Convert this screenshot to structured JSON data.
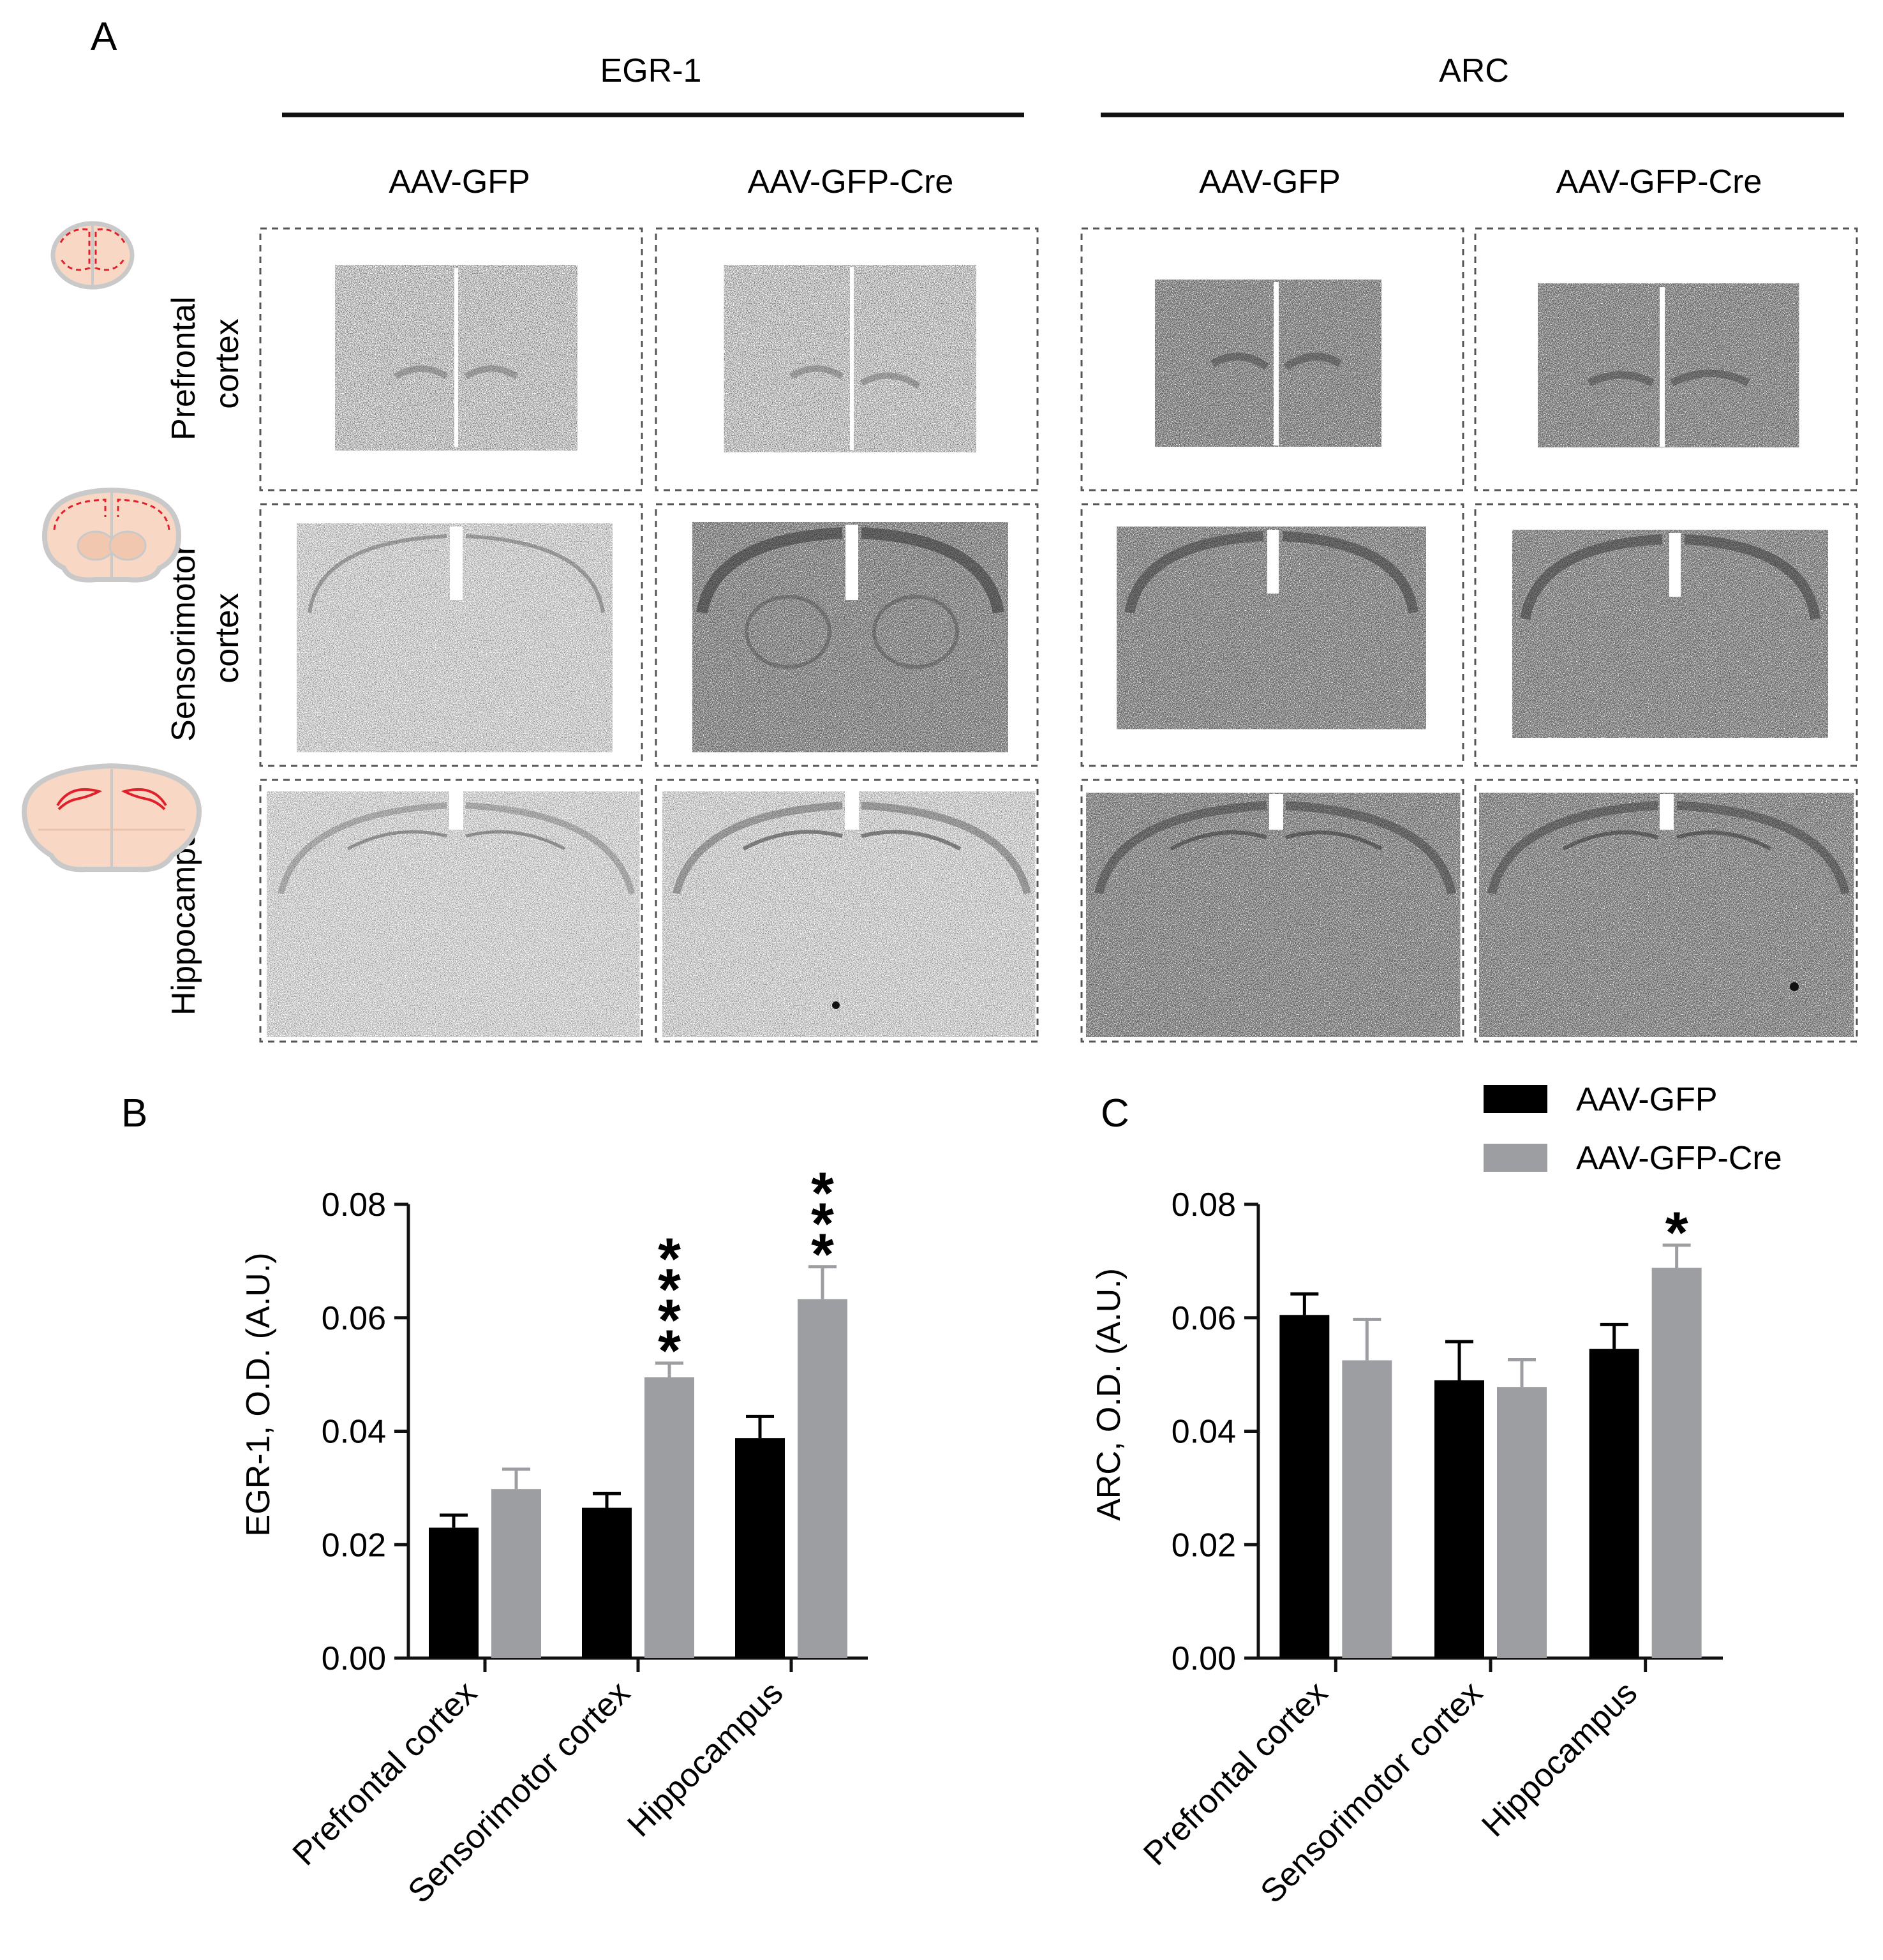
{
  "panel_a": {
    "label": "A",
    "group_headers": [
      "EGR-1",
      "ARC"
    ],
    "column_headers": [
      "AAV-GFP",
      "AAV-GFP-Cre",
      "AAV-GFP",
      "AAV-GFP-Cre"
    ],
    "row_labels": [
      [
        "Prefrontal",
        "cortex"
      ],
      [
        "Sensorimotor",
        "cortex"
      ],
      [
        "Hippocampus"
      ]
    ],
    "colors": {
      "brain_fill": "#f8d8c4",
      "brain_outline": "#c9c9c9",
      "region_mark": "#e0202a",
      "section_stain": "#333333"
    }
  },
  "legend": {
    "items": [
      "AAV-GFP",
      "AAV-GFP-Cre"
    ]
  },
  "chart_data": [
    {
      "type": "bar",
      "panel_label": "B",
      "title": "",
      "ylabel": "EGR-1, O.D. (A.U.)",
      "xlabel": "",
      "categories": [
        "Prefrontal cortex",
        "Sensorimotor cortex",
        "Hippocampus"
      ],
      "ylim": [
        0,
        0.08
      ],
      "yticks": [
        "0.00",
        "0.02",
        "0.04",
        "0.06",
        "0.08"
      ],
      "series": [
        {
          "name": "AAV-GFP",
          "color": "#000000",
          "values": [
            0.023,
            0.0265,
            0.0388
          ],
          "errors": [
            0.0022,
            0.0025,
            0.0038
          ]
        },
        {
          "name": "AAV-GFP-Cre",
          "color": "#9d9ea2",
          "values": [
            0.0298,
            0.0495,
            0.0633
          ],
          "errors": [
            0.0035,
            0.0025,
            0.0057
          ]
        }
      ],
      "significance": [
        "",
        "****",
        "***"
      ],
      "legend": "none",
      "grid": false
    },
    {
      "type": "bar",
      "panel_label": "C",
      "title": "",
      "ylabel": "ARC, O.D. (A.U.)",
      "xlabel": "",
      "categories": [
        "Prefrontal cortex",
        "Sensorimotor cortex",
        "Hippocampus"
      ],
      "ylim": [
        0,
        0.08
      ],
      "yticks": [
        "0.00",
        "0.02",
        "0.04",
        "0.06",
        "0.08"
      ],
      "series": [
        {
          "name": "AAV-GFP",
          "color": "#000000",
          "values": [
            0.0605,
            0.049,
            0.0545
          ],
          "errors": [
            0.0037,
            0.0068,
            0.0043
          ]
        },
        {
          "name": "AAV-GFP-Cre",
          "color": "#9d9ea2",
          "values": [
            0.0525,
            0.0478,
            0.0688
          ],
          "errors": [
            0.0072,
            0.0048,
            0.004
          ]
        }
      ],
      "significance": [
        "",
        "",
        "*"
      ],
      "legend": "top-right",
      "grid": false
    }
  ]
}
